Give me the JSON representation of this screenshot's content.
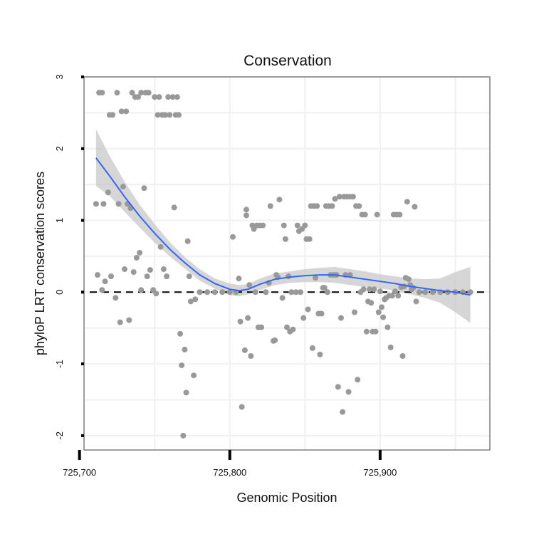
{
  "chart_data": {
    "type": "scatter",
    "title": "Conservation",
    "xlabel": "Genomic Position",
    "ylabel": "phyloP LRT conservation scores",
    "xlim": [
      725703,
      725973
    ],
    "ylim": [
      -2.2,
      3.0
    ],
    "x_ticks": [
      725700,
      725800,
      725900
    ],
    "x_tick_labels": [
      "725,700",
      "725,800",
      "725,900"
    ],
    "y_ticks": [
      -2,
      -1,
      0,
      1,
      2,
      3
    ],
    "y_tick_labels": [
      "-2",
      "-1",
      "0",
      "1",
      "2",
      "3"
    ],
    "grid": true,
    "legend": "none",
    "reference_line": {
      "y": 0,
      "style": "dashed"
    },
    "colors": {
      "points": "#999999",
      "smooth_line": "#3366ff",
      "confidence_band": "#c8c8c8",
      "panel_border": "#7f7f7f",
      "grid": "#f0f0f0"
    },
    "series": [
      {
        "type": "scatter",
        "points": [
          [
            725711,
            1.23
          ],
          [
            725712,
            0.24
          ],
          [
            725713,
            2.78
          ],
          [
            725715,
            2.78
          ],
          [
            725715,
            0.03
          ],
          [
            725716,
            1.23
          ],
          [
            725717,
            0.15
          ],
          [
            725719,
            1.39
          ],
          [
            725720,
            2.47
          ],
          [
            725721,
            0.22
          ],
          [
            725722,
            2.47
          ],
          [
            725724,
            -0.08
          ],
          [
            725725,
            2.78
          ],
          [
            725726,
            1.23
          ],
          [
            725727,
            -0.42
          ],
          [
            725728,
            2.52
          ],
          [
            725729,
            1.47
          ],
          [
            725730,
            0.32
          ],
          [
            725731,
            2.52
          ],
          [
            725732,
            1.23
          ],
          [
            725733,
            -0.39
          ],
          [
            725734,
            1.17
          ],
          [
            725735,
            2.78
          ],
          [
            725736,
            0.28
          ],
          [
            725737,
            2.72
          ],
          [
            725738,
            0.48
          ],
          [
            725739,
            2.72
          ],
          [
            725740,
            0.55
          ],
          [
            725741,
            2.78
          ],
          [
            725741,
            0.03
          ],
          [
            725743,
            1.45
          ],
          [
            725744,
            2.78
          ],
          [
            725745,
            0.22
          ],
          [
            725746,
            2.78
          ],
          [
            725747,
            0.31
          ],
          [
            725749,
            0.03
          ],
          [
            725750,
            2.72
          ],
          [
            725751,
            -0.02
          ],
          [
            725752,
            2.47
          ],
          [
            725753,
            2.72
          ],
          [
            725754,
            0.63
          ],
          [
            725755,
            2.47
          ],
          [
            725756,
            0.32
          ],
          [
            725757,
            2.47
          ],
          [
            725758,
            0.22
          ],
          [
            725759,
            2.72
          ],
          [
            725760,
            2.47
          ],
          [
            725762,
            2.72
          ],
          [
            725763,
            1.18
          ],
          [
            725764,
            2.47
          ],
          [
            725765,
            2.72
          ],
          [
            725766,
            2.47
          ],
          [
            725767,
            -0.58
          ],
          [
            725768,
            -1.02
          ],
          [
            725769,
            -2.0
          ],
          [
            725770,
            -0.8
          ],
          [
            725771,
            -1.4
          ],
          [
            725772,
            0.71
          ],
          [
            725773,
            0.22
          ],
          [
            725774,
            -0.13
          ],
          [
            725776,
            -1.16
          ],
          [
            725777,
            -0.1
          ],
          [
            725780,
            0.0
          ],
          [
            725785,
            0.0
          ],
          [
            725790,
            0.0
          ],
          [
            725795,
            0.0
          ],
          [
            725800,
            0.0
          ],
          [
            725802,
            0.77
          ],
          [
            725804,
            0.0
          ],
          [
            725806,
            0.19
          ],
          [
            725807,
            -0.41
          ],
          [
            725808,
            -1.6
          ],
          [
            725810,
            -0.81
          ],
          [
            725811,
            1.15
          ],
          [
            725811,
            1.07
          ],
          [
            725812,
            -0.36
          ],
          [
            725813,
            0.1
          ],
          [
            725814,
            -0.89
          ],
          [
            725815,
            0.93
          ],
          [
            725816,
            0.88
          ],
          [
            725817,
            0.0
          ],
          [
            725818,
            0.93
          ],
          [
            725819,
            -0.49
          ],
          [
            725820,
            0.93
          ],
          [
            725821,
            -0.49
          ],
          [
            725822,
            0.93
          ],
          [
            725824,
            0.0
          ],
          [
            725826,
            0.13
          ],
          [
            725827,
            1.2
          ],
          [
            725829,
            -0.68
          ],
          [
            725830,
            -0.67
          ],
          [
            725831,
            0.24
          ],
          [
            725832,
            0.21
          ],
          [
            725833,
            1.29
          ],
          [
            725835,
            -0.08
          ],
          [
            725836,
            0.93
          ],
          [
            725837,
            0.74
          ],
          [
            725838,
            -0.49
          ],
          [
            725839,
            0.22
          ],
          [
            725840,
            -0.55
          ],
          [
            725841,
            0.0
          ],
          [
            725842,
            -0.52
          ],
          [
            725844,
            0.0
          ],
          [
            725845,
            0.93
          ],
          [
            725846,
            0.85
          ],
          [
            725847,
            0.0
          ],
          [
            725848,
            0.88
          ],
          [
            725849,
            -0.36
          ],
          [
            725850,
            0.93
          ],
          [
            725851,
            0.74
          ],
          [
            725852,
            -0.24
          ],
          [
            725853,
            0.74
          ],
          [
            725854,
            1.2
          ],
          [
            725855,
            -0.78
          ],
          [
            725856,
            1.2
          ],
          [
            725857,
            0.2
          ],
          [
            725858,
            1.2
          ],
          [
            725859,
            -0.3
          ],
          [
            725860,
            -0.87
          ],
          [
            725861,
            -0.3
          ],
          [
            725862,
            0.06
          ],
          [
            725863,
            0.06
          ],
          [
            725864,
            1.2
          ],
          [
            725865,
            0.0
          ],
          [
            725866,
            1.2
          ],
          [
            725867,
            0.24
          ],
          [
            725868,
            1.2
          ],
          [
            725869,
            0.24
          ],
          [
            725870,
            1.3
          ],
          [
            725871,
            0.24
          ],
          [
            725872,
            -1.32
          ],
          [
            725873,
            1.33
          ],
          [
            725874,
            -0.36
          ],
          [
            725875,
            -1.67
          ],
          [
            725876,
            1.33
          ],
          [
            725877,
            0.24
          ],
          [
            725878,
            1.33
          ],
          [
            725879,
            -1.39
          ],
          [
            725880,
            0.24
          ],
          [
            725880,
            1.33
          ],
          [
            725882,
            1.33
          ],
          [
            725883,
            -0.28
          ],
          [
            725884,
            1.2
          ],
          [
            725885,
            -1.22
          ],
          [
            725886,
            1.2
          ],
          [
            725887,
            0.0
          ],
          [
            725888,
            1.08
          ],
          [
            725889,
            0.04
          ],
          [
            725890,
            1.08
          ],
          [
            725891,
            -0.55
          ],
          [
            725892,
            -0.13
          ],
          [
            725893,
            0.04
          ],
          [
            725894,
            -0.15
          ],
          [
            725895,
            -0.55
          ],
          [
            725896,
            0.04
          ],
          [
            725897,
            -0.55
          ],
          [
            725898,
            1.08
          ],
          [
            725899,
            -0.28
          ],
          [
            725900,
            0.01
          ],
          [
            725901,
            -0.21
          ],
          [
            725902,
            -0.35
          ],
          [
            725903,
            -0.1
          ],
          [
            725904,
            -0.08
          ],
          [
            725905,
            -0.49
          ],
          [
            725906,
            -0.05
          ],
          [
            725907,
            -0.77
          ],
          [
            725908,
            -0.05
          ],
          [
            725909,
            1.08
          ],
          [
            725910,
            0.01
          ],
          [
            725911,
            1.08
          ],
          [
            725912,
            -0.05
          ],
          [
            725913,
            1.08
          ],
          [
            725914,
            0.07
          ],
          [
            725915,
            -0.89
          ],
          [
            725916,
            0.08
          ],
          [
            725917,
            0.2
          ],
          [
            725918,
            1.26
          ],
          [
            725919,
            0.18
          ],
          [
            725920,
            0.1
          ],
          [
            725921,
            0.04
          ],
          [
            725922,
            0.06
          ],
          [
            725923,
            1.19
          ],
          [
            725924,
            -0.13
          ],
          [
            725926,
            0.0
          ],
          [
            725930,
            0.0
          ],
          [
            725935,
            0.0
          ],
          [
            725940,
            0.0
          ],
          [
            725945,
            0.0
          ],
          [
            725950,
            0.0
          ],
          [
            725955,
            0.0
          ],
          [
            725960,
            0.0
          ]
        ]
      },
      {
        "type": "smooth",
        "x": [
          725711,
          725720,
          725730,
          725740,
          725750,
          725760,
          725770,
          725780,
          725790,
          725800,
          725806,
          725812,
          725820,
          725830,
          725840,
          725850,
          725860,
          725870,
          725880,
          725890,
          725900,
          725910,
          725920,
          725930,
          725940,
          725950,
          725960
        ],
        "y": [
          1.87,
          1.62,
          1.33,
          1.06,
          0.82,
          0.6,
          0.41,
          0.24,
          0.12,
          0.04,
          0.02,
          0.04,
          0.11,
          0.18,
          0.21,
          0.23,
          0.24,
          0.24,
          0.21,
          0.18,
          0.15,
          0.12,
          0.08,
          0.05,
          0.02,
          0.0,
          -0.04
        ],
        "lower": [
          1.48,
          1.34,
          1.12,
          0.9,
          0.69,
          0.5,
          0.33,
          0.16,
          0.05,
          -0.04,
          -0.06,
          -0.03,
          0.03,
          0.1,
          0.13,
          0.14,
          0.14,
          0.13,
          0.1,
          0.07,
          0.05,
          0.02,
          -0.03,
          -0.08,
          -0.15,
          -0.28,
          -0.43
        ],
        "upper": [
          2.27,
          1.9,
          1.54,
          1.22,
          0.95,
          0.7,
          0.49,
          0.32,
          0.19,
          0.12,
          0.1,
          0.11,
          0.19,
          0.26,
          0.29,
          0.32,
          0.34,
          0.35,
          0.32,
          0.29,
          0.25,
          0.22,
          0.19,
          0.18,
          0.19,
          0.28,
          0.35
        ]
      }
    ]
  }
}
